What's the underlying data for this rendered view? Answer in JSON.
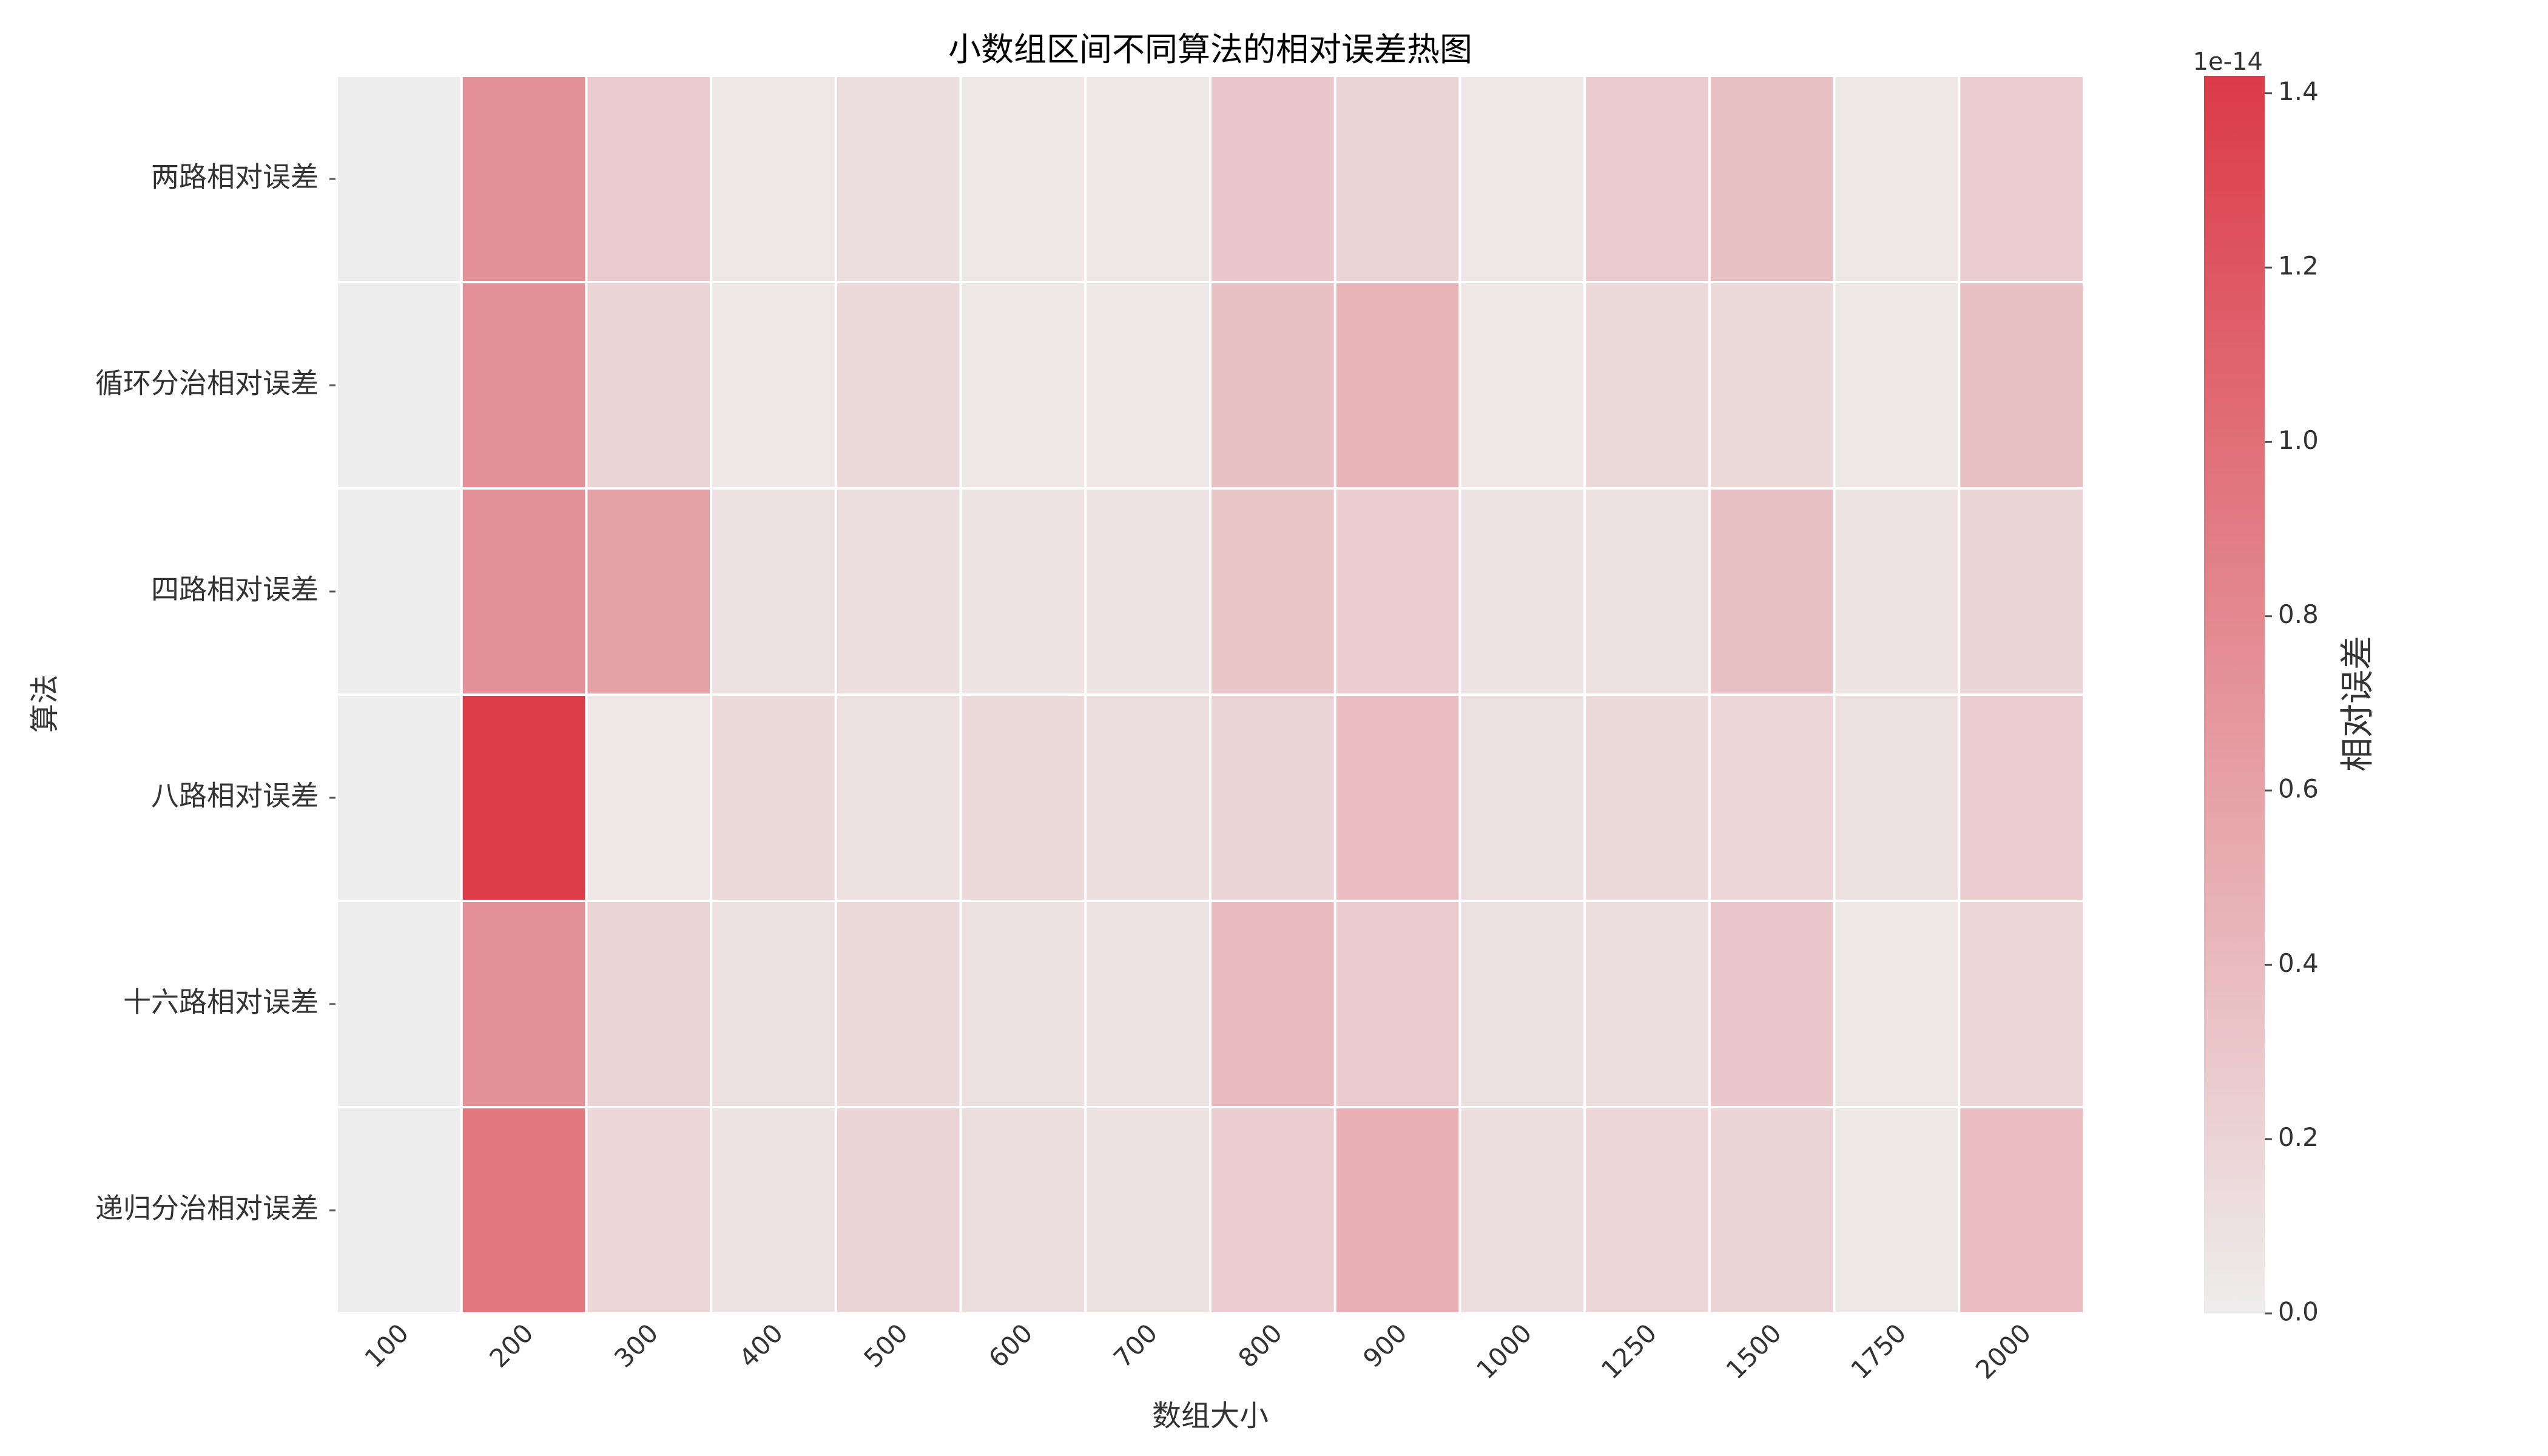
{
  "chart_data": {
    "type": "heatmap",
    "title": "小数组区间不同算法的相对误差热图",
    "xlabel": "数组大小",
    "ylabel": "算法",
    "x_categories": [
      "100",
      "200",
      "300",
      "400",
      "500",
      "600",
      "700",
      "800",
      "900",
      "1000",
      "1250",
      "1500",
      "1750",
      "2000"
    ],
    "y_categories": [
      "两路相对误差",
      "循环分治相对误差",
      "四路相对误差",
      "八路相对误差",
      "十六路相对误差",
      "递归分治相对误差"
    ],
    "values_scale_label": "1e-14",
    "values": [
      [
        0.0,
        0.73,
        0.28,
        0.05,
        0.12,
        0.05,
        0.05,
        0.3,
        0.2,
        0.05,
        0.28,
        0.35,
        0.05,
        0.25
      ],
      [
        0.0,
        0.73,
        0.2,
        0.05,
        0.15,
        0.05,
        0.05,
        0.35,
        0.45,
        0.05,
        0.15,
        0.15,
        0.05,
        0.35
      ],
      [
        0.0,
        0.73,
        0.6,
        0.1,
        0.12,
        0.08,
        0.08,
        0.32,
        0.25,
        0.08,
        0.1,
        0.35,
        0.08,
        0.2
      ],
      [
        0.0,
        1.4,
        0.05,
        0.15,
        0.1,
        0.15,
        0.12,
        0.2,
        0.38,
        0.1,
        0.15,
        0.18,
        0.1,
        0.25
      ],
      [
        0.0,
        0.73,
        0.2,
        0.1,
        0.15,
        0.1,
        0.08,
        0.4,
        0.28,
        0.1,
        0.12,
        0.3,
        0.05,
        0.18
      ],
      [
        0.0,
        0.93,
        0.18,
        0.08,
        0.2,
        0.12,
        0.1,
        0.25,
        0.48,
        0.12,
        0.18,
        0.2,
        0.05,
        0.38
      ]
    ],
    "vmin": 0.0,
    "vmax": 1.42,
    "colorbar": {
      "label": "相对误差",
      "ticks": [
        "0.0",
        "0.2",
        "0.4",
        "0.6",
        "0.8",
        "1.0",
        "1.2",
        "1.4"
      ]
    },
    "colors": {
      "low": "#eeeded",
      "high": "#db3a47"
    }
  }
}
